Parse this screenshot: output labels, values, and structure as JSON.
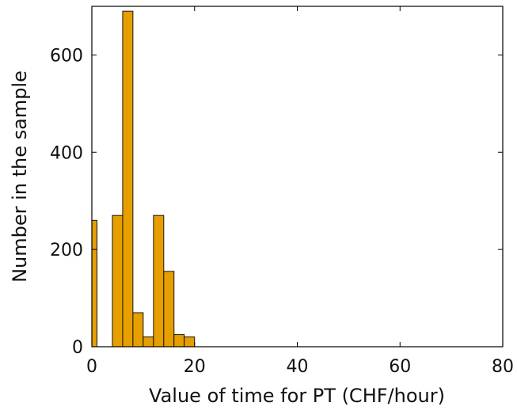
{
  "chart_data": {
    "type": "bar",
    "xlabel": "Value of time for PT (CHF/hour)",
    "ylabel": "Number in the sample",
    "xlim": [
      0,
      80
    ],
    "ylim": [
      0,
      700
    ],
    "bin_width": 2,
    "x": [
      0,
      5,
      7,
      9,
      11,
      13,
      15,
      17,
      19,
      21,
      23,
      25,
      27,
      29,
      31,
      33,
      35,
      37,
      39,
      41,
      43,
      45,
      47,
      49,
      51,
      53,
      55,
      57,
      59,
      61,
      63,
      65,
      67,
      69,
      71,
      73,
      75,
      77,
      79
    ],
    "values": [
      260,
      270,
      690,
      70,
      20,
      270,
      155,
      25,
      20,
      0,
      0,
      0,
      0,
      0,
      0,
      0,
      0,
      0,
      0,
      0,
      0,
      0,
      0,
      0,
      0,
      0,
      0,
      0,
      0,
      0,
      0,
      0,
      0,
      0,
      0,
      0,
      0,
      0,
      0
    ],
    "xticks": [
      "0",
      "20",
      "40",
      "60",
      "80"
    ],
    "yticks": [
      "0",
      "200",
      "400",
      "600"
    ],
    "grid": false,
    "bar_color": "#e69f00",
    "bar_edge_color": "#000000"
  }
}
